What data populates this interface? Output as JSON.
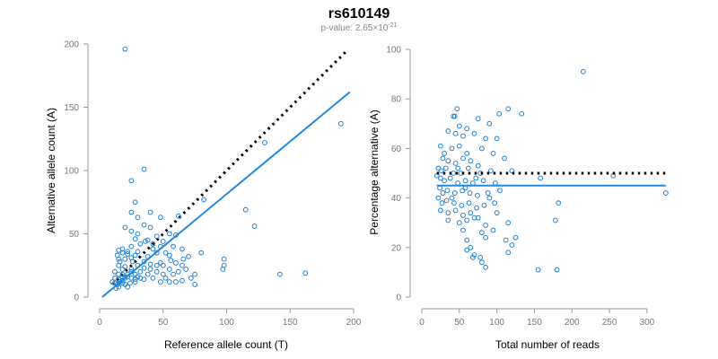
{
  "header": {
    "title": "rs610149",
    "pvalue_prefix": "p-value: 2.65×10",
    "pvalue_exponent": "-21"
  },
  "colors": {
    "points": "#1f80d0",
    "fit": "#1f8ae0",
    "reference": "#000000",
    "axis": "#999999"
  },
  "chart_data": [
    {
      "type": "scatter",
      "xlabel": "Reference allele count (T)",
      "ylabel": "Alternative allele count (A)",
      "xlim": [
        0,
        200
      ],
      "ylim": [
        0,
        200
      ],
      "xticks": [
        0,
        50,
        100,
        150,
        200
      ],
      "yticks": [
        0,
        50,
        100,
        150,
        200
      ],
      "reference_line": {
        "style": "dotted",
        "from": [
          10,
          10
        ],
        "to": [
          195,
          195
        ]
      },
      "fit_line": {
        "style": "solid",
        "from": [
          2,
          0
        ],
        "to": [
          197,
          162
        ]
      },
      "points": [
        [
          20,
          196
        ],
        [
          190,
          137
        ],
        [
          130,
          122
        ],
        [
          35,
          101
        ],
        [
          25,
          92
        ],
        [
          28,
          75
        ],
        [
          40,
          67
        ],
        [
          25,
          67
        ],
        [
          82,
          77
        ],
        [
          30,
          63
        ],
        [
          48,
          63
        ],
        [
          62,
          64
        ],
        [
          115,
          69
        ],
        [
          122,
          56
        ],
        [
          35,
          57
        ],
        [
          40,
          55
        ],
        [
          20,
          55
        ],
        [
          25,
          52
        ],
        [
          30,
          50
        ],
        [
          45,
          48
        ],
        [
          55,
          50
        ],
        [
          60,
          49
        ],
        [
          28,
          46
        ],
        [
          38,
          45
        ],
        [
          50,
          44
        ],
        [
          15,
          37
        ],
        [
          18,
          38
        ],
        [
          22,
          36
        ],
        [
          25,
          40
        ],
        [
          32,
          42
        ],
        [
          42,
          42
        ],
        [
          48,
          40
        ],
        [
          58,
          40
        ],
        [
          65,
          38
        ],
        [
          22,
          34
        ],
        [
          28,
          33
        ],
        [
          38,
          32
        ],
        [
          45,
          35
        ],
        [
          52,
          35
        ],
        [
          55,
          33
        ],
        [
          70,
          32
        ],
        [
          80,
          35
        ],
        [
          15,
          30
        ],
        [
          20,
          30
        ],
        [
          25,
          31
        ],
        [
          35,
          28
        ],
        [
          40,
          26
        ],
        [
          45,
          25
        ],
        [
          50,
          25
        ],
        [
          60,
          27
        ],
        [
          65,
          25
        ],
        [
          48,
          27
        ],
        [
          98,
          30
        ],
        [
          98,
          25
        ],
        [
          97,
          22
        ],
        [
          15,
          25
        ],
        [
          18,
          22
        ],
        [
          20,
          24
        ],
        [
          25,
          22
        ],
        [
          30,
          25
        ],
        [
          35,
          23
        ],
        [
          40,
          22
        ],
        [
          55,
          22
        ],
        [
          62,
          20
        ],
        [
          68,
          22
        ],
        [
          12,
          20
        ],
        [
          15,
          18
        ],
        [
          18,
          18
        ],
        [
          22,
          18
        ],
        [
          25,
          20
        ],
        [
          28,
          18
        ],
        [
          32,
          20
        ],
        [
          38,
          18
        ],
        [
          45,
          20
        ],
        [
          50,
          18
        ],
        [
          58,
          18
        ],
        [
          75,
          18
        ],
        [
          142,
          18
        ],
        [
          162,
          19
        ],
        [
          12,
          15
        ],
        [
          15,
          14
        ],
        [
          18,
          16
        ],
        [
          20,
          15
        ],
        [
          22,
          16
        ],
        [
          25,
          15
        ],
        [
          28,
          14
        ],
        [
          30,
          16
        ],
        [
          32,
          15
        ],
        [
          35,
          14
        ],
        [
          42,
          15
        ],
        [
          48,
          12
        ],
        [
          52,
          15
        ],
        [
          55,
          12
        ],
        [
          60,
          12
        ],
        [
          65,
          13
        ],
        [
          72,
          15
        ],
        [
          75,
          10
        ],
        [
          10,
          12
        ],
        [
          12,
          11
        ],
        [
          14,
          10
        ],
        [
          16,
          12
        ],
        [
          18,
          11
        ],
        [
          20,
          10
        ],
        [
          24,
          11
        ],
        [
          28,
          12
        ],
        [
          15,
          8
        ],
        [
          13,
          7
        ],
        [
          22,
          8
        ],
        [
          18,
          13
        ],
        [
          16,
          28
        ],
        [
          14,
          33
        ],
        [
          18,
          35
        ],
        [
          26,
          28
        ],
        [
          30,
          36
        ],
        [
          36,
          44
        ],
        [
          42,
          38
        ],
        [
          56,
          29
        ],
        [
          66,
          30
        ]
      ]
    },
    {
      "type": "scatter",
      "xlabel": "Total number of reads",
      "ylabel": "Percentage alternative (A)",
      "xlim": [
        0,
        330
      ],
      "ylim": [
        0,
        100
      ],
      "xticks": [
        0,
        50,
        100,
        150,
        200,
        250,
        300
      ],
      "yticks": [
        0,
        20,
        40,
        60,
        80,
        100
      ],
      "reference_line": {
        "style": "dotted",
        "y": 50,
        "from_x": 20,
        "to_x": 325
      },
      "fit_line": {
        "style": "solid",
        "y": 45,
        "from_x": 20,
        "to_x": 325
      },
      "points": [
        [
          215,
          91
        ],
        [
          47,
          76
        ],
        [
          115,
          76
        ],
        [
          103,
          74
        ],
        [
          133,
          74
        ],
        [
          42,
          73
        ],
        [
          44,
          73
        ],
        [
          75,
          72
        ],
        [
          90,
          70
        ],
        [
          50,
          69
        ],
        [
          35,
          67
        ],
        [
          60,
          68
        ],
        [
          45,
          66
        ],
        [
          55,
          65
        ],
        [
          70,
          66
        ],
        [
          85,
          64
        ],
        [
          100,
          64
        ],
        [
          25,
          61
        ],
        [
          30,
          58
        ],
        [
          40,
          60
        ],
        [
          50,
          61
        ],
        [
          60,
          58
        ],
        [
          80,
          60
        ],
        [
          95,
          58
        ],
        [
          28,
          56
        ],
        [
          35,
          55
        ],
        [
          45,
          54
        ],
        [
          55,
          56
        ],
        [
          65,
          55
        ],
        [
          75,
          53
        ],
        [
          110,
          56
        ],
        [
          22,
          52
        ],
        [
          26,
          51
        ],
        [
          32,
          52
        ],
        [
          42,
          50
        ],
        [
          52,
          50
        ],
        [
          62,
          52
        ],
        [
          78,
          50
        ],
        [
          92,
          51
        ],
        [
          120,
          51
        ],
        [
          20,
          49
        ],
        [
          25,
          48
        ],
        [
          30,
          47
        ],
        [
          38,
          48
        ],
        [
          48,
          46
        ],
        [
          58,
          47
        ],
        [
          68,
          46
        ],
        [
          82,
          47
        ],
        [
          98,
          46
        ],
        [
          158,
          48
        ],
        [
          255,
          49
        ],
        [
          325,
          42
        ],
        [
          24,
          44
        ],
        [
          28,
          42
        ],
        [
          34,
          43
        ],
        [
          44,
          42
        ],
        [
          54,
          43
        ],
        [
          64,
          42
        ],
        [
          74,
          41
        ],
        [
          88,
          42
        ],
        [
          104,
          43
        ],
        [
          22,
          40
        ],
        [
          27,
          38
        ],
        [
          33,
          39
        ],
        [
          43,
          38
        ],
        [
          53,
          37
        ],
        [
          63,
          38
        ],
        [
          73,
          36
        ],
        [
          83,
          37
        ],
        [
          97,
          38
        ],
        [
          182,
          38
        ],
        [
          25,
          35
        ],
        [
          35,
          34
        ],
        [
          45,
          35
        ],
        [
          55,
          33
        ],
        [
          65,
          34
        ],
        [
          75,
          32
        ],
        [
          100,
          34
        ],
        [
          35,
          31
        ],
        [
          50,
          30
        ],
        [
          60,
          31
        ],
        [
          70,
          32
        ],
        [
          85,
          29
        ],
        [
          115,
          30
        ],
        [
          178,
          31
        ],
        [
          55,
          27
        ],
        [
          80,
          26
        ],
        [
          95,
          27
        ],
        [
          60,
          23
        ],
        [
          65,
          20
        ],
        [
          85,
          24
        ],
        [
          112,
          23
        ],
        [
          125,
          24
        ],
        [
          60,
          19
        ],
        [
          70,
          17
        ],
        [
          120,
          21
        ],
        [
          68,
          16
        ],
        [
          78,
          16
        ],
        [
          115,
          18
        ],
        [
          80,
          14
        ],
        [
          85,
          12
        ],
        [
          155,
          11
        ],
        [
          180,
          11
        ],
        [
          40,
          40
        ],
        [
          48,
          52
        ],
        [
          58,
          44
        ],
        [
          72,
          48
        ],
        [
          90,
          40
        ]
      ]
    }
  ]
}
